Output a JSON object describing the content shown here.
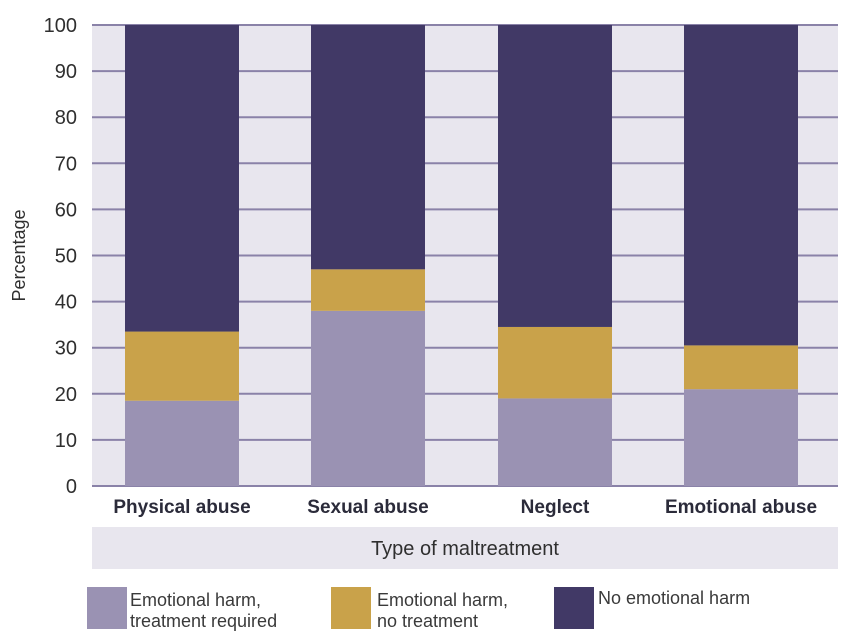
{
  "chart_data": {
    "type": "bar",
    "stacked": true,
    "categories": [
      "Physical abuse",
      "Sexual abuse",
      "Neglect",
      "Emotional abuse"
    ],
    "series": [
      {
        "name": "Emotional harm, treatment required",
        "values": [
          18.5,
          38,
          19,
          21
        ],
        "color": "#9a92b3"
      },
      {
        "name": "Emotional harm, no treatment",
        "values": [
          15,
          9,
          15.5,
          9.5
        ],
        "color": "#c9a24a"
      },
      {
        "name": "No emotional harm",
        "values": [
          66.5,
          53,
          65.5,
          69.5
        ],
        "color": "#413966"
      }
    ],
    "yticks": [
      0,
      10,
      20,
      30,
      40,
      50,
      60,
      70,
      80,
      90,
      100
    ],
    "ylim": [
      0,
      100
    ],
    "ylabel": "Percentage",
    "xlabel": "Type of maltreatment",
    "grid": true,
    "legend_position": "bottom"
  },
  "legend": {
    "items": [
      {
        "line1": "Emotional harm,",
        "line2": "treatment required"
      },
      {
        "line1": "Emotional harm,",
        "line2": "no treatment"
      },
      {
        "line1": "No emotional harm",
        "line2": ""
      }
    ]
  },
  "colors": {
    "plot_background": "#e8e6ee",
    "gridline": "#8a82a8",
    "xlabel_band": "#e8e6ee"
  }
}
